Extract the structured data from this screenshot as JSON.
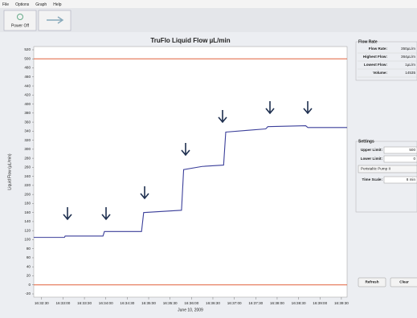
{
  "menu": [
    "File",
    "Options",
    "Graph",
    "Help"
  ],
  "toolbar": {
    "power_button": "Power Off"
  },
  "chart_data": {
    "type": "line",
    "title": "TruFlo Liquid Flow µL/min",
    "ylabel": "Liquid Flow (µL/min)",
    "xlabel": "June 10, 2009",
    "x": [
      -11,
      32,
      33,
      86,
      88,
      140,
      143,
      196,
      199,
      225,
      255,
      258,
      290,
      314,
      317,
      370,
      373,
      428
    ],
    "series": [
      {
        "color": "#3b3f9a",
        "values": [
          105,
          105,
          108,
          108,
          118,
          118,
          160,
          165,
          255,
          262,
          265,
          338,
          342,
          345,
          350,
          352,
          348,
          348
        ]
      }
    ],
    "xlim": [
      -11,
      428
    ],
    "ylim": [
      -20,
      520
    ],
    "yticks": [
      -20,
      0,
      20,
      40,
      60,
      80,
      100,
      120,
      140,
      160,
      180,
      200,
      220,
      240,
      260,
      280,
      300,
      320,
      340,
      360,
      380,
      400,
      420,
      440,
      460,
      480,
      500,
      520
    ],
    "xticks": [
      {
        "value": 0,
        "label": "16:32:30"
      },
      {
        "value": 30,
        "label": "16:33:00"
      },
      {
        "value": 60,
        "label": "16:33:30"
      },
      {
        "value": 90,
        "label": "16:34:00"
      },
      {
        "value": 120,
        "label": "16:34:30"
      },
      {
        "value": 150,
        "label": "16:35:00"
      },
      {
        "value": 180,
        "label": "16:35:30"
      },
      {
        "value": 210,
        "label": "16:36:00"
      },
      {
        "value": 240,
        "label": "16:36:30"
      },
      {
        "value": 270,
        "label": "16:37:00"
      },
      {
        "value": 300,
        "label": "16:37:30"
      },
      {
        "value": 330,
        "label": "16:38:00"
      },
      {
        "value": 360,
        "label": "16:38:30"
      },
      {
        "value": 390,
        "label": "16:39:00"
      },
      {
        "value": 420,
        "label": "16:39:30"
      }
    ],
    "limit_lines": [
      {
        "value": 500,
        "color": "#e0603a"
      },
      {
        "value": 0,
        "color": "#e0603a"
      }
    ]
  },
  "flow_panel": {
    "title": "Flow Rate",
    "rows": [
      {
        "label": "Flow Rate:",
        "value": "350µL/m"
      },
      {
        "label": "Highest Flow:",
        "value": "364µL/m"
      },
      {
        "label": "Lowest Flow:",
        "value": "1µL/m"
      },
      {
        "label": "Volume:",
        "value": "14535"
      }
    ]
  },
  "settings_panel": {
    "title": "Settings",
    "rows": [
      {
        "label": "Upper Limit:",
        "value": "500"
      },
      {
        "label": "Lower Limit:",
        "value": "0"
      }
    ],
    "pump": "Peristaltic Pump II",
    "time_scale": {
      "label": "Time Scale:",
      "value": "8 min"
    }
  },
  "buttons": [
    "Refresh",
    "Clear"
  ]
}
